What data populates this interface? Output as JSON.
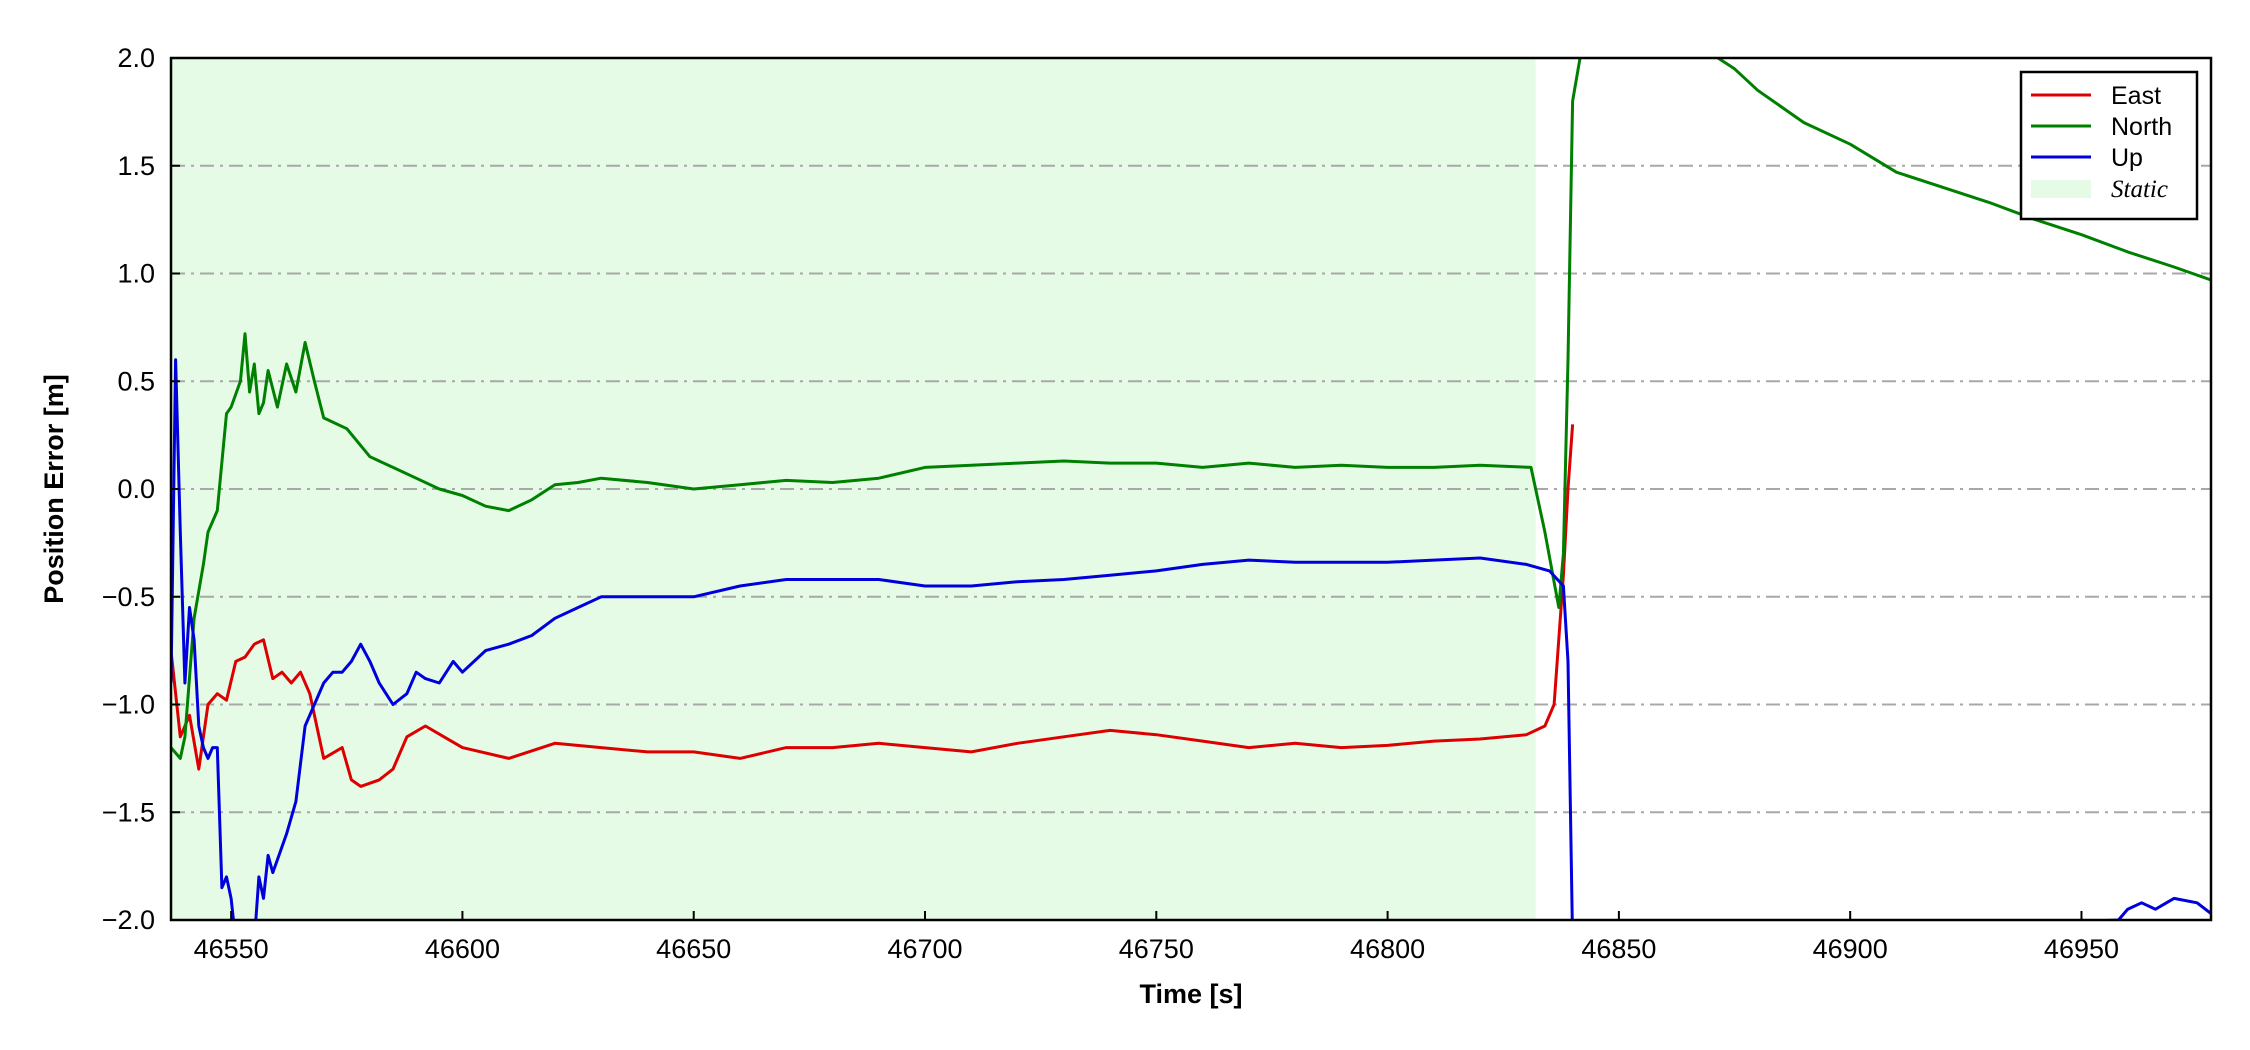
{
  "chart_data": {
    "type": "line",
    "xlabel": "Time [s]",
    "ylabel": "Position Error [m]",
    "xlim": [
      46537,
      46978
    ],
    "ylim": [
      -2.0,
      2.0
    ],
    "xticks": [
      46550,
      46600,
      46650,
      46700,
      46750,
      46800,
      46850,
      46900,
      46950
    ],
    "x_tick_labels": [
      "46550",
      "46600",
      "46650",
      "46700",
      "46750",
      "46800",
      "46850",
      "46900",
      "46950"
    ],
    "yticks": [
      -2.0,
      -1.5,
      -1.0,
      -0.5,
      0.0,
      0.5,
      1.0,
      1.5,
      2.0
    ],
    "y_tick_labels": [
      "−2.0",
      "−1.5",
      "−1.0",
      "−0.5",
      "0.0",
      "0.5",
      "1.0",
      "1.5",
      "2.0"
    ],
    "grid": "horizontal dash-dot",
    "legend_position": "top-right",
    "shaded_region": {
      "name": "Static",
      "x_start": 46537,
      "x_end": 46832,
      "color": "#e6fbe6"
    },
    "series": [
      {
        "name": "East",
        "color": "#dd0000",
        "x": [
          46537,
          46539,
          46541,
          46543,
          46545,
          46547,
          46549,
          46551,
          46553,
          46555,
          46557,
          46559,
          46561,
          46563,
          46565,
          46567,
          46570,
          46574,
          46576,
          46578,
          46582,
          46585,
          46588,
          46592,
          46596,
          46600,
          46610,
          46620,
          46630,
          46640,
          46650,
          46660,
          46670,
          46680,
          46690,
          46700,
          46710,
          46720,
          46730,
          46740,
          46750,
          46760,
          46770,
          46780,
          46790,
          46800,
          46810,
          46820,
          46830,
          46834,
          46836,
          46838,
          46839,
          46840
        ],
        "y": [
          -0.75,
          -1.15,
          -1.05,
          -1.3,
          -1.0,
          -0.95,
          -0.98,
          -0.8,
          -0.78,
          -0.72,
          -0.7,
          -0.88,
          -0.85,
          -0.9,
          -0.85,
          -0.95,
          -1.25,
          -1.2,
          -1.35,
          -1.38,
          -1.35,
          -1.3,
          -1.15,
          -1.1,
          -1.15,
          -1.2,
          -1.25,
          -1.18,
          -1.2,
          -1.22,
          -1.22,
          -1.25,
          -1.2,
          -1.2,
          -1.18,
          -1.2,
          -1.22,
          -1.18,
          -1.15,
          -1.12,
          -1.14,
          -1.17,
          -1.2,
          -1.18,
          -1.2,
          -1.19,
          -1.17,
          -1.16,
          -1.14,
          -1.1,
          -1.0,
          -0.4,
          0.0,
          0.3
        ]
      },
      {
        "name": "North",
        "color": "#008000",
        "x": [
          46537,
          46539,
          46540,
          46542,
          46544,
          46545,
          46547,
          46549,
          46550,
          46552,
          46553,
          46554,
          46555,
          46556,
          46557,
          46558,
          46560,
          46562,
          46564,
          46566,
          46568,
          46570,
          46575,
          46580,
          46585,
          46590,
          46595,
          46600,
          46605,
          46610,
          46615,
          46620,
          46625,
          46630,
          46640,
          46650,
          46660,
          46670,
          46680,
          46690,
          46700,
          46710,
          46720,
          46730,
          46740,
          46750,
          46760,
          46770,
          46780,
          46790,
          46800,
          46810,
          46820,
          46831,
          46834,
          46837,
          46838,
          46839,
          46840,
          46842,
          46870,
          46875,
          46880,
          46890,
          46900,
          46910,
          46920,
          46930,
          46940,
          46950,
          46960,
          46970,
          46978
        ],
        "y": [
          -1.2,
          -1.25,
          -1.15,
          -0.6,
          -0.35,
          -0.2,
          -0.1,
          0.35,
          0.38,
          0.5,
          0.72,
          0.45,
          0.58,
          0.35,
          0.4,
          0.55,
          0.38,
          0.58,
          0.45,
          0.68,
          0.5,
          0.33,
          0.28,
          0.15,
          0.1,
          0.05,
          0.0,
          -0.03,
          -0.08,
          -0.1,
          -0.05,
          0.02,
          0.03,
          0.05,
          0.03,
          0.0,
          0.02,
          0.04,
          0.03,
          0.05,
          0.1,
          0.11,
          0.12,
          0.13,
          0.12,
          0.12,
          0.1,
          0.12,
          0.1,
          0.11,
          0.1,
          0.1,
          0.11,
          0.1,
          -0.2,
          -0.55,
          -0.3,
          0.6,
          1.8,
          2.05,
          2.02,
          1.95,
          1.85,
          1.7,
          1.6,
          1.47,
          1.4,
          1.33,
          1.25,
          1.18,
          1.1,
          1.03,
          0.97
        ]
      },
      {
        "name": "Up",
        "color": "#0000dd",
        "x": [
          46537,
          46538,
          46539,
          46540,
          46541,
          46542,
          46543,
          46544,
          46545,
          46546,
          46547,
          46548,
          46549,
          46550,
          46551,
          46552,
          46553,
          46555,
          46556,
          46557,
          46558,
          46559,
          46560,
          46562,
          46564,
          46566,
          46568,
          46570,
          46572,
          46574,
          46576,
          46578,
          46580,
          46582,
          46585,
          46588,
          46590,
          46592,
          46595,
          46598,
          46600,
          46605,
          46610,
          46615,
          46620,
          46625,
          46630,
          46640,
          46650,
          46660,
          46670,
          46680,
          46690,
          46700,
          46710,
          46720,
          46730,
          46740,
          46750,
          46760,
          46770,
          46780,
          46790,
          46800,
          46810,
          46820,
          46830,
          46835,
          46838,
          46839,
          46840,
          46958,
          46960,
          46963,
          46966,
          46970,
          46975,
          46978
        ],
        "y": [
          -0.9,
          0.6,
          -0.2,
          -0.9,
          -0.55,
          -0.7,
          -1.1,
          -1.2,
          -1.25,
          -1.2,
          -1.2,
          -1.85,
          -1.8,
          -1.9,
          -2.1,
          -2.2,
          -2.15,
          -2.1,
          -1.8,
          -1.9,
          -1.7,
          -1.78,
          -1.72,
          -1.6,
          -1.45,
          -1.1,
          -1.0,
          -0.9,
          -0.85,
          -0.85,
          -0.8,
          -0.72,
          -0.8,
          -0.9,
          -1.0,
          -0.95,
          -0.85,
          -0.88,
          -0.9,
          -0.8,
          -0.85,
          -0.75,
          -0.72,
          -0.68,
          -0.6,
          -0.55,
          -0.5,
          -0.5,
          -0.5,
          -0.45,
          -0.42,
          -0.42,
          -0.42,
          -0.45,
          -0.45,
          -0.43,
          -0.42,
          -0.4,
          -0.38,
          -0.35,
          -0.33,
          -0.34,
          -0.34,
          -0.34,
          -0.33,
          -0.32,
          -0.35,
          -0.38,
          -0.45,
          -0.8,
          -2.1,
          -2.0,
          -1.95,
          -1.92,
          -1.95,
          -1.9,
          -1.92,
          -1.97
        ]
      }
    ]
  }
}
